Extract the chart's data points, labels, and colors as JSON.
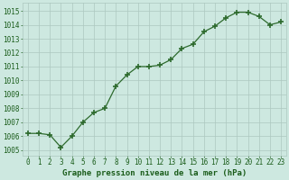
{
  "x": [
    0,
    1,
    2,
    3,
    4,
    5,
    6,
    7,
    8,
    9,
    10,
    11,
    12,
    13,
    14,
    15,
    16,
    17,
    18,
    19,
    20,
    21,
    22,
    23
  ],
  "y": [
    1006.2,
    1006.2,
    1006.1,
    1005.2,
    1006.0,
    1007.0,
    1007.7,
    1008.0,
    1009.6,
    1010.4,
    1011.0,
    1011.0,
    1011.1,
    1011.5,
    1012.3,
    1012.6,
    1013.5,
    1013.9,
    1014.5,
    1014.9,
    1014.9,
    1014.6,
    1014.0,
    1014.2
  ],
  "line_color": "#2d6a2d",
  "marker": "P",
  "marker_size": 3.5,
  "bg_color": "#cde8e0",
  "grid_color": "#adc8c0",
  "xlabel": "Graphe pression niveau de la mer (hPa)",
  "xlabel_color": "#1a5c1a",
  "tick_label_color": "#1a5c1a",
  "ylim": [
    1004.6,
    1015.6
  ],
  "yticks": [
    1005,
    1006,
    1007,
    1008,
    1009,
    1010,
    1011,
    1012,
    1013,
    1014,
    1015
  ],
  "xlim": [
    -0.5,
    23.5
  ],
  "xticks": [
    0,
    1,
    2,
    3,
    4,
    5,
    6,
    7,
    8,
    9,
    10,
    11,
    12,
    13,
    14,
    15,
    16,
    17,
    18,
    19,
    20,
    21,
    22,
    23
  ],
  "font_family": "monospace",
  "tick_fontsize": 5.5,
  "xlabel_fontsize": 6.5
}
